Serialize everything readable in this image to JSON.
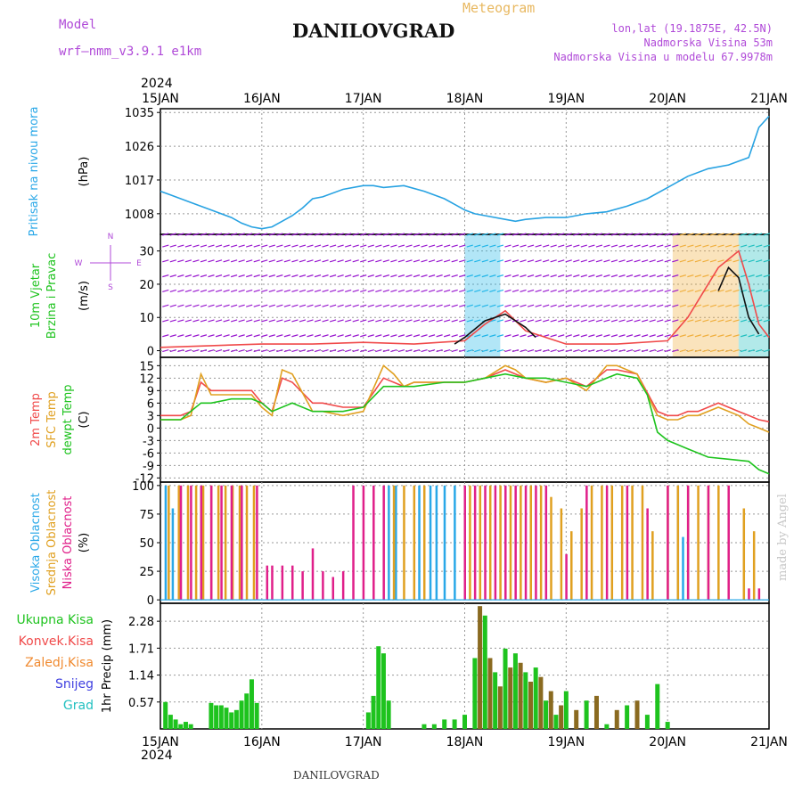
{
  "header": {
    "model_label": "Model",
    "model_name": "wrf—nmm_v3.9.1 e1km",
    "title": "DANILOVGRAD",
    "chart_kind": "Meteogram",
    "lonlat": "lon,lat (19.1875E, 42.5N)",
    "elevation": "Nadmorska Visina 53m",
    "model_elevation": "Nadmorska Visina u modelu 67.9978m",
    "year": "2024",
    "footer_station": "DANILOVGRAD",
    "credit": "made by Angel",
    "colors": {
      "model": "#b04ad8",
      "meteogram": "#e8b860",
      "title": "#111111"
    }
  },
  "chart_data": [
    {
      "type": "line",
      "panel": "pressure",
      "ylabel": [
        "Pritisak na nivou mora",
        "(hPa)"
      ],
      "ylabel_colors": [
        "#2aa8e8",
        "#000000"
      ],
      "x": [
        "15JAN",
        "16JAN",
        "17JAN",
        "18JAN",
        "19JAN",
        "20JAN",
        "21JAN"
      ],
      "yticks": [
        1008,
        1017,
        1026,
        1035
      ],
      "ylim": [
        1002.5,
        1036
      ],
      "series": [
        {
          "color": "#27a2e2",
          "x": [
            0,
            0.1,
            0.3,
            0.5,
            0.7,
            0.8,
            0.9,
            1.0,
            1.1,
            1.2,
            1.3,
            1.4,
            1.5,
            1.6,
            1.8,
            2.0,
            2.1,
            2.2,
            2.4,
            2.6,
            2.8,
            3.0,
            3.1,
            3.2,
            3.4,
            3.5,
            3.6,
            3.8,
            4.0,
            4.2,
            4.4,
            4.6,
            4.8,
            5.0,
            5.2,
            5.4,
            5.6,
            5.7,
            5.8,
            5.85,
            5.9,
            6.0
          ],
          "y": [
            1014,
            1013,
            1011,
            1009,
            1007,
            1005.5,
            1004.5,
            1004,
            1004.5,
            1006,
            1007.5,
            1009.5,
            1012,
            1012.5,
            1014.5,
            1015.5,
            1015.5,
            1015,
            1015.5,
            1014,
            1012,
            1009,
            1008,
            1007.5,
            1006.5,
            1006,
            1006.5,
            1007,
            1007,
            1008,
            1008.5,
            1010,
            1012,
            1015,
            1018,
            1020,
            1021,
            1022,
            1023,
            1027,
            1031,
            1034
          ]
        }
      ]
    },
    {
      "type": "line",
      "panel": "wind",
      "ylabel": [
        "10m Vjetar",
        "Brzina i Pravac",
        "(m/s)"
      ],
      "ylabel_colors": [
        "#1ec31e",
        "#1ec31e",
        "#000000"
      ],
      "direction_key": [
        "N",
        "S",
        "W",
        "E"
      ],
      "yticks": [
        0,
        10,
        20,
        30
      ],
      "ylim": [
        -2,
        35
      ],
      "barb_rows": [
        0,
        4.5,
        9,
        13.5,
        18,
        22.5,
        27,
        31.5,
        35
      ],
      "barb_color": "#9a1ad0",
      "gust_zones": [
        {
          "x": [
            3.0,
            3.35
          ],
          "color": "#22b6e8"
        },
        {
          "x": [
            5.05,
            5.7
          ],
          "color": "#f0b040"
        },
        {
          "x": [
            5.7,
            6.0
          ],
          "color": "#22c0c0"
        }
      ],
      "series": [
        {
          "name": "",
          "color": "#f04a4a",
          "x": [
            0,
            0.5,
            1.0,
            1.5,
            2.0,
            2.5,
            3.0,
            3.2,
            3.4,
            3.6,
            4.0,
            4.5,
            5.0,
            5.2,
            5.5,
            5.7,
            5.8,
            5.9,
            6.0
          ],
          "y": [
            1,
            1.5,
            2,
            2,
            2.5,
            2,
            3,
            8,
            12,
            6,
            2,
            2,
            3,
            10,
            25,
            30,
            20,
            8,
            4
          ]
        },
        {
          "name": "",
          "color": "#111111",
          "x": [
            2.9,
            3.0,
            3.2,
            3.4,
            3.6,
            3.7
          ],
          "y": [
            2,
            4,
            9,
            11,
            7,
            4
          ]
        },
        {
          "name": "",
          "color": "#111111",
          "x": [
            5.5,
            5.6,
            5.7,
            5.8,
            5.9
          ],
          "y": [
            18,
            25,
            22,
            10,
            5
          ]
        }
      ]
    },
    {
      "type": "line",
      "panel": "temperature",
      "ylabel": [
        "2m Temp",
        "SFC Temp",
        "dewpt Temp",
        "(C)"
      ],
      "ylabel_colors": [
        "#f04a4a",
        "#e0a020",
        "#1ec31e",
        "#000000"
      ],
      "yticks": [
        -12,
        -9,
        -6,
        -3,
        0,
        3,
        6,
        9,
        12,
        15
      ],
      "ylim": [
        -13,
        17
      ],
      "series": [
        {
          "name": "2m Temp",
          "color": "#f04a4a",
          "x": [
            0,
            0.2,
            0.3,
            0.4,
            0.5,
            0.7,
            0.9,
            1.0,
            1.1,
            1.2,
            1.3,
            1.5,
            1.6,
            1.8,
            2.0,
            2.2,
            2.3,
            2.4,
            2.5,
            2.6,
            2.8,
            3.0,
            3.2,
            3.4,
            3.5,
            3.6,
            3.8,
            4.0,
            4.2,
            4.4,
            4.5,
            4.7,
            4.9,
            5.0,
            5.1,
            5.2,
            5.3,
            5.5,
            5.7,
            5.8,
            5.9,
            6.0
          ],
          "y": [
            3,
            3,
            4,
            11,
            9,
            9,
            9,
            6,
            4,
            12,
            11,
            6,
            6,
            5,
            5,
            12,
            11,
            10,
            11,
            11,
            11,
            11,
            12,
            14,
            13,
            12,
            11,
            12,
            10,
            14,
            14,
            13,
            4,
            3,
            3,
            4,
            4,
            6,
            4,
            3,
            2,
            1.5
          ]
        },
        {
          "name": "SFC Temp",
          "color": "#e0a020",
          "x": [
            0,
            0.2,
            0.3,
            0.4,
            0.5,
            0.7,
            0.9,
            1.0,
            1.1,
            1.2,
            1.3,
            1.5,
            1.6,
            1.8,
            2.0,
            2.2,
            2.3,
            2.4,
            2.5,
            2.6,
            2.8,
            3.0,
            3.2,
            3.4,
            3.5,
            3.6,
            3.8,
            4.0,
            4.2,
            4.4,
            4.5,
            4.7,
            4.9,
            5.0,
            5.1,
            5.2,
            5.3,
            5.5,
            5.7,
            5.8,
            5.9,
            6.0
          ],
          "y": [
            2,
            2,
            3,
            13,
            8,
            8,
            8,
            5,
            3,
            14,
            13,
            4,
            4,
            3,
            4,
            15,
            13,
            10,
            11,
            11,
            11,
            11,
            12,
            15,
            14,
            12,
            11,
            12,
            9,
            15,
            15,
            13,
            3,
            2,
            2,
            3,
            3,
            5,
            3,
            1,
            0,
            -1
          ]
        },
        {
          "name": "dewpt Temp",
          "color": "#1ec31e",
          "x": [
            0,
            0.2,
            0.4,
            0.5,
            0.7,
            0.9,
            1.0,
            1.1,
            1.3,
            1.5,
            1.8,
            2.0,
            2.2,
            2.4,
            2.5,
            2.8,
            3.0,
            3.2,
            3.4,
            3.6,
            3.8,
            4.0,
            4.2,
            4.4,
            4.5,
            4.7,
            4.8,
            4.9,
            5.0,
            5.2,
            5.4,
            5.6,
            5.8,
            5.9,
            6.0
          ],
          "y": [
            2,
            2,
            6,
            6,
            7,
            7,
            6,
            4,
            6,
            4,
            4,
            5,
            10,
            10,
            10,
            11,
            11,
            12,
            13,
            12,
            12,
            11,
            10,
            12,
            13,
            12,
            8,
            -1,
            -3,
            -5,
            -7,
            -7.5,
            -8,
            -10,
            -11
          ]
        }
      ]
    },
    {
      "type": "bar",
      "panel": "clouds",
      "ylabel": [
        "Visoka Oblacnost",
        "Srednja Oblacnost",
        "Niska Oblacnost",
        "(%)"
      ],
      "ylabel_colors": [
        "#2aa8e8",
        "#e0a020",
        "#e0208a",
        "#000000"
      ],
      "yticks": [
        0,
        25,
        50,
        75,
        100
      ],
      "ylim": [
        -3,
        103
      ],
      "series": [
        {
          "name": "Visoka Oblacnost",
          "color": "#2aa8e8",
          "x": [
            0.05,
            0.12,
            2.25,
            2.32,
            2.55,
            2.66,
            2.72,
            2.8,
            2.9,
            5.1,
            5.15
          ],
          "values": [
            100,
            80,
            100,
            100,
            100,
            100,
            100,
            100,
            100,
            100,
            55
          ]
        },
        {
          "name": "Srednja Oblacnost",
          "color": "#e0a020",
          "x": [
            0.08,
            0.18,
            0.27,
            0.35,
            0.42,
            0.5,
            0.57,
            0.64,
            0.71,
            0.78,
            0.85,
            0.92,
            2.3,
            2.4,
            2.5,
            2.6,
            3.05,
            3.15,
            3.25,
            3.35,
            3.45,
            3.55,
            3.65,
            3.75,
            3.85,
            3.95,
            4.05,
            4.15,
            4.25,
            4.35,
            4.45,
            4.55,
            4.65,
            4.75,
            4.85,
            5.0,
            5.1,
            5.2,
            5.3,
            5.4,
            5.5,
            5.6,
            5.75,
            5.85
          ],
          "values": [
            100,
            100,
            100,
            100,
            100,
            100,
            100,
            100,
            100,
            100,
            100,
            100,
            100,
            100,
            100,
            100,
            100,
            100,
            100,
            100,
            100,
            100,
            100,
            100,
            90,
            80,
            60,
            80,
            100,
            100,
            100,
            100,
            100,
            100,
            60,
            100,
            100,
            100,
            100,
            100,
            100,
            100,
            80,
            60
          ]
        },
        {
          "name": "Niska Oblacnost",
          "color": "#e0208a",
          "x": [
            0.2,
            0.3,
            0.4,
            0.5,
            0.6,
            0.7,
            0.8,
            0.95,
            1.05,
            1.1,
            1.2,
            1.3,
            1.4,
            1.5,
            1.6,
            1.7,
            1.8,
            1.9,
            2.0,
            2.1,
            2.2,
            3.0,
            3.1,
            3.2,
            3.3,
            3.4,
            3.5,
            3.6,
            3.7,
            3.8,
            4.0,
            4.2,
            4.4,
            4.6,
            4.8,
            5.0,
            5.2,
            5.4,
            5.6,
            5.8,
            5.9
          ],
          "values": [
            100,
            100,
            100,
            100,
            100,
            100,
            100,
            100,
            30,
            30,
            30,
            30,
            25,
            45,
            25,
            20,
            25,
            100,
            100,
            100,
            100,
            100,
            100,
            100,
            100,
            100,
            100,
            100,
            100,
            100,
            40,
            100,
            100,
            100,
            80,
            100,
            100,
            100,
            100,
            10,
            10
          ]
        }
      ]
    },
    {
      "type": "bar",
      "panel": "precip",
      "ylabel": [
        "1hr Precip (mm)"
      ],
      "ylabel_colors": [
        "#000000"
      ],
      "legend": [
        {
          "label": "Ukupna Kisa",
          "color": "#1ec31e"
        },
        {
          "label": "Konvek.Kisa",
          "color": "#f04a4a"
        },
        {
          "label": "Zaledj.Kisa",
          "color": "#f08a30"
        },
        {
          "label": "Snijeg",
          "color": "#4040e0"
        },
        {
          "label": "Grad",
          "color": "#22c0c0"
        }
      ],
      "yticks": [
        0.57,
        1.14,
        1.71,
        2.28
      ],
      "ylim": [
        0,
        2.66
      ],
      "x_ticks": [
        "15JAN",
        "16JAN",
        "17JAN",
        "18JAN",
        "19JAN",
        "20JAN",
        "21JAN"
      ],
      "x": [
        0.05,
        0.1,
        0.15,
        0.2,
        0.25,
        0.3,
        0.5,
        0.55,
        0.6,
        0.65,
        0.7,
        0.75,
        0.8,
        0.85,
        0.9,
        0.95,
        2.05,
        2.1,
        2.15,
        2.2,
        2.25,
        2.6,
        2.7,
        2.8,
        2.9,
        3.0,
        3.1,
        3.15,
        3.2,
        3.25,
        3.3,
        3.35,
        3.4,
        3.45,
        3.5,
        3.55,
        3.6,
        3.65,
        3.7,
        3.75,
        3.8,
        3.85,
        3.9,
        3.95,
        4.0,
        4.1,
        4.2,
        4.3,
        4.4,
        4.5,
        4.6,
        4.7,
        4.8,
        4.9,
        5.0
      ],
      "values": [
        0.57,
        0.3,
        0.2,
        0.1,
        0.15,
        0.1,
        0.55,
        0.5,
        0.5,
        0.45,
        0.35,
        0.4,
        0.6,
        0.75,
        1.05,
        0.55,
        0.35,
        0.7,
        1.75,
        1.6,
        0.6,
        0.1,
        0.1,
        0.2,
        0.2,
        0.3,
        1.5,
        2.6,
        2.4,
        1.5,
        1.2,
        0.9,
        1.7,
        1.3,
        1.6,
        1.4,
        1.2,
        1.0,
        1.3,
        1.1,
        0.6,
        0.8,
        0.3,
        0.5,
        0.8,
        0.4,
        0.6,
        0.7,
        0.1,
        0.4,
        0.5,
        0.6,
        0.3,
        0.95,
        0.15
      ]
    }
  ]
}
